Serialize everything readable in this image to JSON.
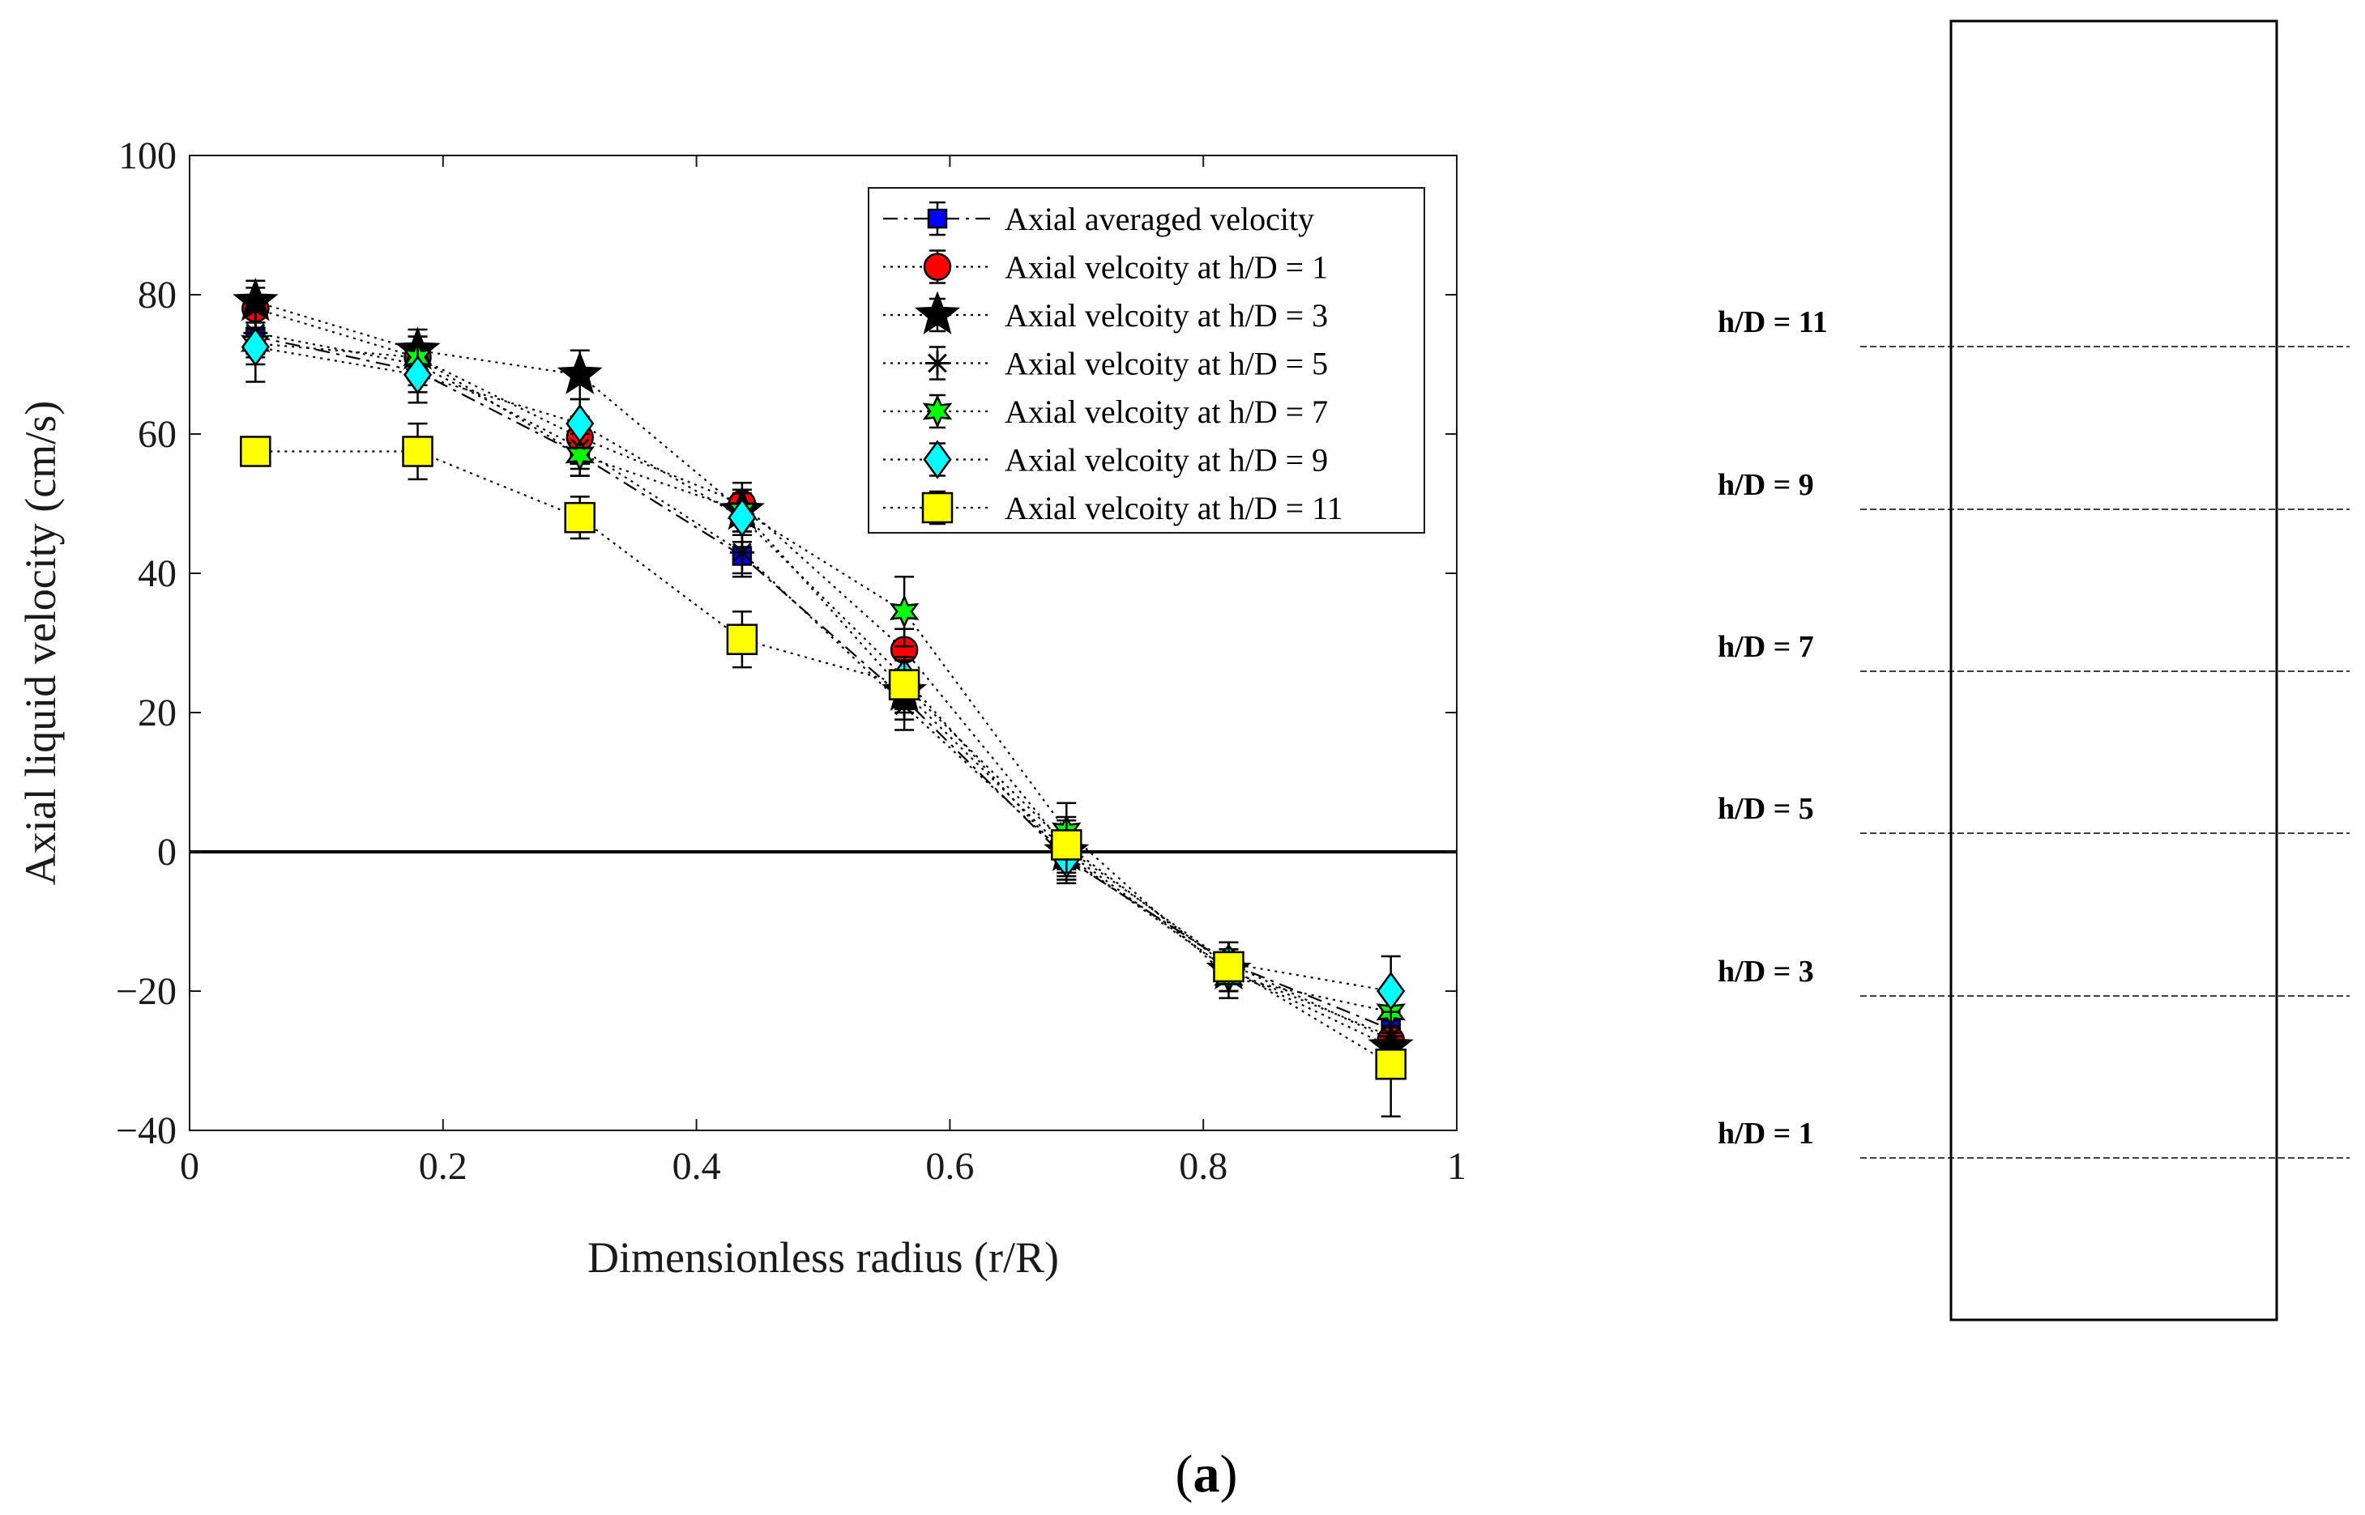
{
  "chart_data": {
    "type": "line",
    "xlabel": "Dimensionless radius (r/R)",
    "ylabel": "Axial liquid velocity (cm/s)",
    "xlim": [
      0,
      1
    ],
    "ylim": [
      -40,
      100
    ],
    "xticks": [
      0,
      0.2,
      0.4,
      0.6,
      0.8,
      1
    ],
    "xtick_labels": [
      "0",
      "0.2",
      "0.4",
      "0.6",
      "0.8",
      "1"
    ],
    "yticks": [
      -40,
      -20,
      0,
      20,
      40,
      60,
      80,
      100
    ],
    "ytick_labels": [
      "−40",
      "−20",
      "0",
      "20",
      "40",
      "60",
      "80",
      "100"
    ],
    "zero_line": 0,
    "grid": false,
    "legend_position": "top-right",
    "x": [
      0.052,
      0.18,
      0.308,
      0.436,
      0.564,
      0.692,
      0.82,
      0.948
    ],
    "series": [
      {
        "name": "Axial averaged velocity",
        "marker": "square-small",
        "color": "#0000ff",
        "line": "dashdot",
        "values": [
          74,
          69,
          57,
          42.5,
          22,
          -1,
          -16,
          -25.5
        ],
        "err": [
          3,
          3,
          3,
          3,
          3,
          3,
          3,
          3
        ]
      },
      {
        "name": "Axial velcoity at h/D = 1",
        "marker": "circle",
        "color": "#ff0000",
        "line": "dotted",
        "values": [
          78,
          71,
          59.5,
          50,
          29,
          0.5,
          -16,
          -27
        ],
        "err": [
          3,
          3,
          3,
          3,
          3,
          3,
          3,
          3
        ]
      },
      {
        "name": "Axial velcoity at h/D = 3",
        "marker": "star5",
        "color": "#000000",
        "line": "dotted",
        "values": [
          79,
          72,
          68.5,
          49,
          23,
          0,
          -17,
          -28
        ],
        "err": [
          3,
          3,
          3.5,
          3,
          3,
          4.5,
          3,
          4
        ]
      },
      {
        "name": "Axial velcoity at h/D = 5",
        "marker": "asterisk",
        "color": "#000000",
        "line": "dotted",
        "values": [
          74.5,
          70,
          58,
          43,
          21,
          -0.5,
          -17,
          -26.5
        ],
        "err": [
          3,
          3,
          3,
          3,
          3.5,
          3,
          3,
          3
        ]
      },
      {
        "name": "Axial velcoity at h/D = 7",
        "marker": "hexagram",
        "color": "#00ff00",
        "line": "dotted",
        "values": [
          73,
          71,
          57,
          49,
          34.5,
          3,
          -18,
          -23
        ],
        "err": [
          3,
          3,
          3,
          3,
          5,
          4,
          3,
          3
        ]
      },
      {
        "name": "Axial velcoity at h/D = 9",
        "marker": "diamond",
        "color": "#00ffff",
        "line": "dotted",
        "values": [
          72.5,
          68.5,
          61.5,
          48,
          25,
          -1,
          -16,
          -20
        ],
        "err": [
          5,
          4,
          3.5,
          3.5,
          3,
          3,
          3,
          5
        ]
      },
      {
        "name": "Axial velcoity at h/D = 11",
        "marker": "square",
        "color": "#ffff00",
        "line": "dotted",
        "values": [
          57.5,
          57.5,
          48,
          30.5,
          24,
          1,
          -16.5,
          -30.5
        ],
        "err": [
          2,
          4,
          3,
          4,
          3.5,
          4,
          3.5,
          7.5
        ]
      }
    ]
  },
  "column": {
    "levels": [
      "h/D = 11",
      "h/D = 9",
      "h/D = 7",
      "h/D = 5",
      "h/D = 3",
      "h/D = 1"
    ]
  },
  "caption": {
    "open": "(",
    "letter": "a",
    "close": ")"
  }
}
